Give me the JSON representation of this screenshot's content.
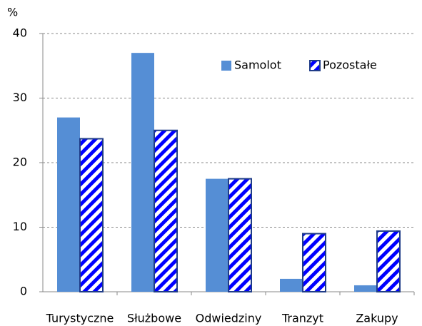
{
  "chart_data": {
    "type": "bar",
    "y_label": "%",
    "categories": [
      "Turystyczne",
      "Służbowe",
      "Odwiedziny",
      "Tranzyt",
      "Zakupy"
    ],
    "series": [
      {
        "name": "Samolot",
        "color": "#558ed5",
        "values": [
          27,
          37,
          17.5,
          2,
          1
        ]
      },
      {
        "name": "Pozostałe",
        "color": "#0000ff",
        "border": "#1f3c88",
        "pattern": "diagonal-stripes",
        "values": [
          23.7,
          25,
          17.5,
          9,
          9.4
        ]
      }
    ],
    "ylim": [
      0,
      40
    ],
    "yticks": [
      0,
      10,
      20,
      30,
      40
    ],
    "grid": true,
    "legend": "top-right"
  }
}
